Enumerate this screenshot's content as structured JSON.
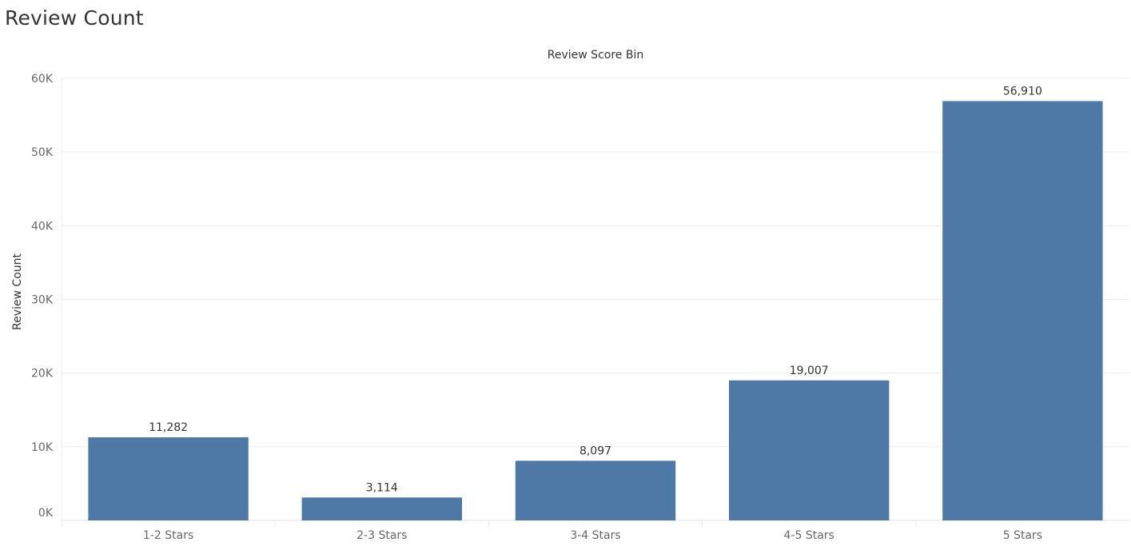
{
  "sheet_title": "Review Count",
  "chart_data": {
    "type": "bar",
    "title": "",
    "column_header": "Review Score Bin",
    "xlabel": "",
    "ylabel": "Review Count",
    "categories": [
      "1-2 Stars",
      "2-3 Stars",
      "3-4 Stars",
      "4-5 Stars",
      "5 Stars"
    ],
    "values": [
      11282,
      3114,
      8097,
      19007,
      56910
    ],
    "value_labels": [
      "11,282",
      "3,114",
      "8,097",
      "19,007",
      "56,910"
    ],
    "ylim": [
      0,
      60000
    ],
    "yticks": [
      0,
      10000,
      20000,
      30000,
      40000,
      50000,
      60000
    ],
    "ytick_labels": [
      "0K",
      "10K",
      "20K",
      "30K",
      "40K",
      "50K",
      "60K"
    ],
    "grid": true,
    "legend": "none",
    "colors": {
      "bar": "#4e79a7",
      "grid": "#ececec",
      "axis_text": "#666666",
      "label_text": "#333333"
    }
  }
}
